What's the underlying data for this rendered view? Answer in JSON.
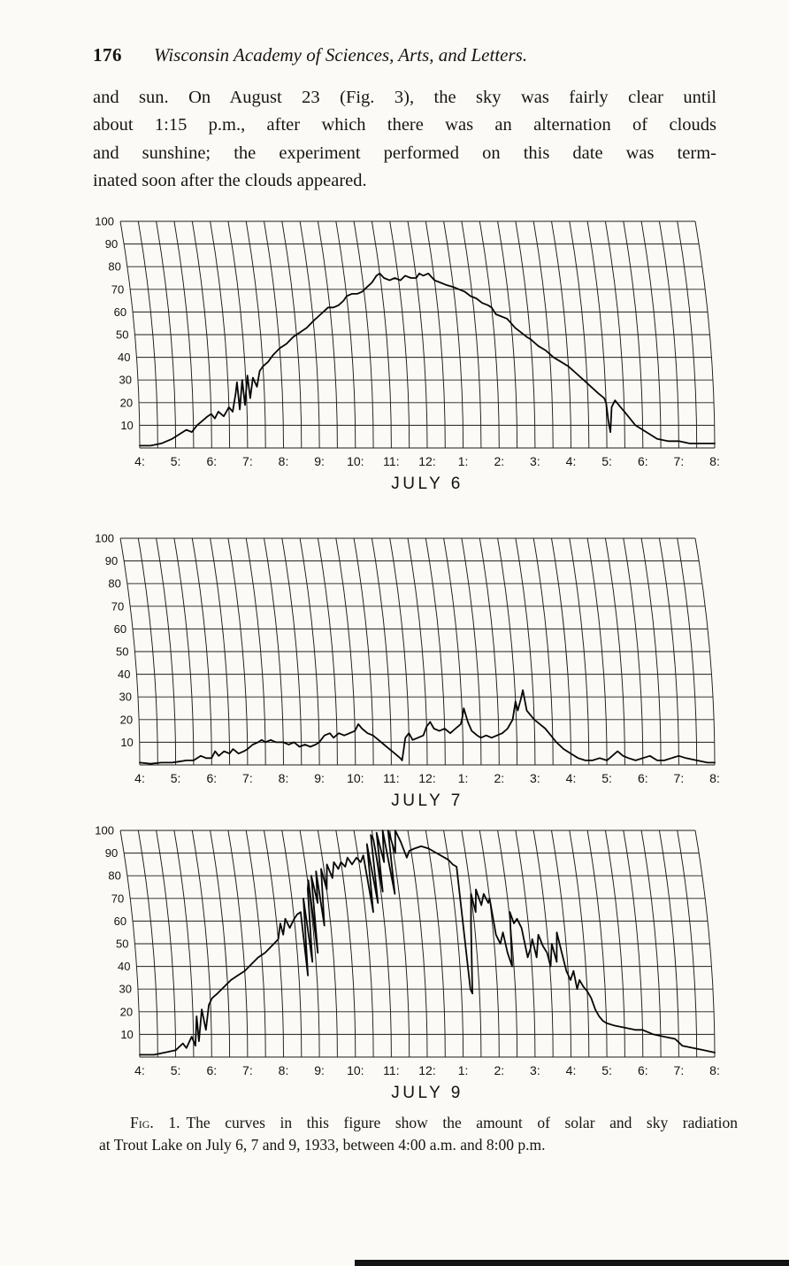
{
  "page": {
    "page_number": "176",
    "running_head": "Wisconsin Academy of Sciences, Arts, and Letters.",
    "body_lines": [
      "and sun.  On August 23 (Fig. 3), the sky was fairly clear until",
      "about 1:15 p.m., after which there was an alternation of clouds",
      "and sunshine; the experiment performed on this date was term-",
      "inated soon after the clouds appeared."
    ],
    "caption_label": "Fig. 1.",
    "caption_line1": "The curves in this figure show the amount of solar and sky radiation",
    "caption_line2": "at Trout Lake on July 6, 7 and 9, 1933, between 4:00 a.m. and 8:00 p.m."
  },
  "chart_data": [
    {
      "type": "line",
      "title": "JULY 6",
      "series_name": "solar and sky radiation",
      "x_tick_labels": [
        "4:",
        "5:",
        "6:",
        "7:",
        "8:",
        "9:",
        "10:",
        "11:",
        "12:",
        "1:",
        "2:",
        "3:",
        "4:",
        "5:",
        "6:",
        "7:",
        "8:"
      ],
      "x_range_hours": [
        4,
        20
      ],
      "ylim": [
        0,
        100
      ],
      "y_ticks": [
        10,
        20,
        30,
        40,
        50,
        60,
        70,
        80,
        90,
        100
      ],
      "grid": "recorder chart with 30-minute curved time arcs",
      "points": [
        [
          4.0,
          1
        ],
        [
          4.3,
          1
        ],
        [
          4.6,
          2
        ],
        [
          4.9,
          4
        ],
        [
          5.1,
          6
        ],
        [
          5.3,
          8
        ],
        [
          5.45,
          7
        ],
        [
          5.6,
          10
        ],
        [
          5.75,
          12
        ],
        [
          5.9,
          14
        ],
        [
          6.0,
          15
        ],
        [
          6.1,
          13
        ],
        [
          6.2,
          16
        ],
        [
          6.35,
          14
        ],
        [
          6.5,
          18
        ],
        [
          6.6,
          16
        ],
        [
          6.7,
          24
        ],
        [
          6.75,
          29
        ],
        [
          6.8,
          17
        ],
        [
          6.9,
          30
        ],
        [
          6.95,
          19
        ],
        [
          7.05,
          32
        ],
        [
          7.1,
          22
        ],
        [
          7.2,
          31
        ],
        [
          7.3,
          27
        ],
        [
          7.4,
          34
        ],
        [
          7.5,
          36
        ],
        [
          7.65,
          38
        ],
        [
          7.8,
          41
        ],
        [
          8.0,
          44
        ],
        [
          8.2,
          46
        ],
        [
          8.4,
          49
        ],
        [
          8.6,
          51
        ],
        [
          8.8,
          53
        ],
        [
          9.0,
          56
        ],
        [
          9.15,
          58
        ],
        [
          9.3,
          60
        ],
        [
          9.45,
          62
        ],
        [
          9.6,
          62
        ],
        [
          9.75,
          63
        ],
        [
          9.9,
          65
        ],
        [
          10.0,
          67
        ],
        [
          10.15,
          68
        ],
        [
          10.3,
          68
        ],
        [
          10.45,
          69
        ],
        [
          10.6,
          71
        ],
        [
          10.75,
          73
        ],
        [
          10.9,
          76
        ],
        [
          11.0,
          77
        ],
        [
          11.1,
          75
        ],
        [
          11.25,
          74
        ],
        [
          11.4,
          75
        ],
        [
          11.55,
          74
        ],
        [
          11.7,
          76
        ],
        [
          11.85,
          75
        ],
        [
          12.0,
          75
        ],
        [
          12.1,
          77
        ],
        [
          12.2,
          76
        ],
        [
          12.35,
          77
        ],
        [
          12.5,
          74
        ],
        [
          12.65,
          73
        ],
        [
          12.8,
          72
        ],
        [
          13.0,
          71
        ],
        [
          13.15,
          70
        ],
        [
          13.3,
          69
        ],
        [
          13.45,
          67
        ],
        [
          13.6,
          66
        ],
        [
          13.75,
          64
        ],
        [
          13.9,
          63
        ],
        [
          14.0,
          62
        ],
        [
          14.1,
          59
        ],
        [
          14.25,
          58
        ],
        [
          14.4,
          57
        ],
        [
          14.5,
          55
        ],
        [
          14.6,
          53
        ],
        [
          14.75,
          51
        ],
        [
          14.9,
          49
        ],
        [
          15.0,
          48
        ],
        [
          15.2,
          45
        ],
        [
          15.4,
          43
        ],
        [
          15.6,
          40
        ],
        [
          15.8,
          38
        ],
        [
          16.0,
          36
        ],
        [
          16.2,
          33
        ],
        [
          16.4,
          30
        ],
        [
          16.6,
          27
        ],
        [
          16.8,
          24
        ],
        [
          16.95,
          22
        ],
        [
          17.0,
          20
        ],
        [
          17.05,
          12
        ],
        [
          17.1,
          7
        ],
        [
          17.15,
          18
        ],
        [
          17.25,
          21
        ],
        [
          17.35,
          19
        ],
        [
          17.5,
          16
        ],
        [
          17.65,
          13
        ],
        [
          17.8,
          10
        ],
        [
          18.0,
          8
        ],
        [
          18.2,
          6
        ],
        [
          18.4,
          4
        ],
        [
          18.7,
          3
        ],
        [
          19.0,
          3
        ],
        [
          19.3,
          2
        ],
        [
          19.6,
          2
        ],
        [
          20.0,
          2
        ]
      ]
    },
    {
      "type": "line",
      "title": "JULY 7",
      "series_name": "solar and sky radiation",
      "x_tick_labels": [
        "4:",
        "5:",
        "6:",
        "7:",
        "8:",
        "9:",
        "10:",
        "11:",
        "12:",
        "1:",
        "2:",
        "3:",
        "4:",
        "5:",
        "6:",
        "7:",
        "8:"
      ],
      "x_range_hours": [
        4,
        20
      ],
      "ylim": [
        0,
        100
      ],
      "y_ticks": [
        10,
        20,
        30,
        40,
        50,
        60,
        70,
        80,
        90,
        100
      ],
      "grid": "recorder chart with 30-minute curved time arcs",
      "points": [
        [
          4.0,
          1
        ],
        [
          4.3,
          0.5
        ],
        [
          4.6,
          1
        ],
        [
          4.9,
          1
        ],
        [
          5.1,
          1.5
        ],
        [
          5.3,
          2
        ],
        [
          5.5,
          2
        ],
        [
          5.7,
          4
        ],
        [
          5.85,
          3
        ],
        [
          6.0,
          3
        ],
        [
          6.1,
          6
        ],
        [
          6.2,
          4
        ],
        [
          6.35,
          6
        ],
        [
          6.5,
          5
        ],
        [
          6.6,
          7
        ],
        [
          6.75,
          5
        ],
        [
          6.9,
          6
        ],
        [
          7.0,
          7
        ],
        [
          7.15,
          9
        ],
        [
          7.3,
          10
        ],
        [
          7.4,
          11
        ],
        [
          7.5,
          10
        ],
        [
          7.65,
          11
        ],
        [
          7.8,
          10
        ],
        [
          8.0,
          10
        ],
        [
          8.15,
          9
        ],
        [
          8.3,
          10
        ],
        [
          8.45,
          8
        ],
        [
          8.6,
          9
        ],
        [
          8.75,
          8
        ],
        [
          8.9,
          9
        ],
        [
          9.0,
          10
        ],
        [
          9.15,
          13
        ],
        [
          9.3,
          14
        ],
        [
          9.4,
          12
        ],
        [
          9.55,
          14
        ],
        [
          9.7,
          13
        ],
        [
          9.85,
          14
        ],
        [
          10.0,
          15
        ],
        [
          10.1,
          18
        ],
        [
          10.2,
          16
        ],
        [
          10.35,
          14
        ],
        [
          10.5,
          13
        ],
        [
          10.65,
          11
        ],
        [
          10.8,
          9
        ],
        [
          10.95,
          7
        ],
        [
          11.1,
          5
        ],
        [
          11.25,
          3
        ],
        [
          11.3,
          2
        ],
        [
          11.4,
          12
        ],
        [
          11.5,
          14
        ],
        [
          11.6,
          11
        ],
        [
          11.75,
          12
        ],
        [
          11.9,
          13
        ],
        [
          12.0,
          17
        ],
        [
          12.1,
          19
        ],
        [
          12.2,
          16
        ],
        [
          12.35,
          15
        ],
        [
          12.5,
          16
        ],
        [
          12.65,
          14
        ],
        [
          12.8,
          16
        ],
        [
          12.95,
          18
        ],
        [
          13.0,
          21
        ],
        [
          13.05,
          25
        ],
        [
          13.15,
          19
        ],
        [
          13.25,
          15
        ],
        [
          13.4,
          13
        ],
        [
          13.5,
          12
        ],
        [
          13.65,
          13
        ],
        [
          13.8,
          12
        ],
        [
          13.95,
          13
        ],
        [
          14.1,
          14
        ],
        [
          14.25,
          16
        ],
        [
          14.4,
          20
        ],
        [
          14.5,
          28
        ],
        [
          14.55,
          24
        ],
        [
          14.65,
          29
        ],
        [
          14.72,
          33
        ],
        [
          14.8,
          24
        ],
        [
          14.9,
          22
        ],
        [
          15.0,
          20
        ],
        [
          15.15,
          18
        ],
        [
          15.3,
          16
        ],
        [
          15.45,
          13
        ],
        [
          15.6,
          10
        ],
        [
          15.8,
          7
        ],
        [
          16.0,
          5
        ],
        [
          16.2,
          3
        ],
        [
          16.4,
          2
        ],
        [
          16.6,
          2
        ],
        [
          16.8,
          3
        ],
        [
          17.0,
          2
        ],
        [
          17.15,
          4
        ],
        [
          17.3,
          6
        ],
        [
          17.45,
          4
        ],
        [
          17.6,
          3
        ],
        [
          17.8,
          2
        ],
        [
          18.0,
          3
        ],
        [
          18.2,
          4
        ],
        [
          18.4,
          2
        ],
        [
          18.6,
          2
        ],
        [
          18.8,
          3
        ],
        [
          19.0,
          4
        ],
        [
          19.2,
          3
        ],
        [
          19.5,
          2
        ],
        [
          19.8,
          1
        ],
        [
          20.0,
          1
        ]
      ]
    },
    {
      "type": "line",
      "title": "JULY 9",
      "series_name": "solar and sky radiation",
      "x_tick_labels": [
        "4:",
        "5:",
        "6:",
        "7:",
        "8:",
        "9:",
        "10:",
        "11:",
        "12:",
        "1:",
        "2:",
        "3:",
        "4:",
        "5:",
        "6:",
        "7:",
        "8:"
      ],
      "x_range_hours": [
        4,
        20
      ],
      "ylim": [
        0,
        100
      ],
      "y_ticks": [
        10,
        20,
        30,
        40,
        50,
        60,
        70,
        80,
        90,
        100
      ],
      "grid": "recorder chart with 30-minute curved time arcs",
      "points": [
        [
          4.0,
          1
        ],
        [
          4.4,
          1
        ],
        [
          4.7,
          2
        ],
        [
          5.0,
          3
        ],
        [
          5.2,
          6
        ],
        [
          5.3,
          4
        ],
        [
          5.45,
          9
        ],
        [
          5.55,
          5
        ],
        [
          5.6,
          18
        ],
        [
          5.65,
          7
        ],
        [
          5.75,
          21
        ],
        [
          5.85,
          12
        ],
        [
          5.95,
          23
        ],
        [
          6.05,
          26
        ],
        [
          6.2,
          28
        ],
        [
          6.4,
          31
        ],
        [
          6.6,
          34
        ],
        [
          6.8,
          36
        ],
        [
          7.0,
          38
        ],
        [
          7.2,
          41
        ],
        [
          7.4,
          44
        ],
        [
          7.6,
          46
        ],
        [
          7.8,
          49
        ],
        [
          8.0,
          52
        ],
        [
          8.1,
          59
        ],
        [
          8.15,
          54
        ],
        [
          8.25,
          61
        ],
        [
          8.35,
          57
        ],
        [
          8.5,
          61
        ],
        [
          8.6,
          63
        ],
        [
          8.7,
          64
        ],
        [
          8.75,
          36
        ],
        [
          8.82,
          70
        ],
        [
          8.9,
          42
        ],
        [
          8.97,
          74
        ],
        [
          9.02,
          78
        ],
        [
          9.07,
          46
        ],
        [
          9.12,
          80
        ],
        [
          9.2,
          68
        ],
        [
          9.27,
          82
        ],
        [
          9.32,
          58
        ],
        [
          9.42,
          83
        ],
        [
          9.5,
          74
        ],
        [
          9.6,
          85
        ],
        [
          9.7,
          79
        ],
        [
          9.8,
          86
        ],
        [
          9.9,
          83
        ],
        [
          10.0,
          86
        ],
        [
          10.1,
          84
        ],
        [
          10.2,
          88
        ],
        [
          10.3,
          85
        ],
        [
          10.45,
          88
        ],
        [
          10.55,
          86
        ],
        [
          10.65,
          89
        ],
        [
          10.72,
          64
        ],
        [
          10.8,
          94
        ],
        [
          10.88,
          68
        ],
        [
          10.95,
          98
        ],
        [
          11.0,
          96
        ],
        [
          11.05,
          73
        ],
        [
          11.12,
          99
        ],
        [
          11.2,
          86
        ],
        [
          11.3,
          100
        ],
        [
          11.38,
          72
        ],
        [
          11.45,
          100
        ],
        [
          11.55,
          90
        ],
        [
          11.65,
          100
        ],
        [
          11.75,
          95
        ],
        [
          11.85,
          88
        ],
        [
          11.95,
          91
        ],
        [
          12.1,
          92
        ],
        [
          12.3,
          93
        ],
        [
          12.5,
          92
        ],
        [
          12.7,
          90
        ],
        [
          12.9,
          88
        ],
        [
          13.0,
          87
        ],
        [
          13.1,
          85
        ],
        [
          13.2,
          84
        ],
        [
          13.25,
          30
        ],
        [
          13.3,
          28
        ],
        [
          13.4,
          58
        ],
        [
          13.5,
          72
        ],
        [
          13.57,
          64
        ],
        [
          13.65,
          74
        ],
        [
          13.75,
          67
        ],
        [
          13.85,
          72
        ],
        [
          13.95,
          68
        ],
        [
          14.0,
          70
        ],
        [
          14.07,
          54
        ],
        [
          14.17,
          50
        ],
        [
          14.27,
          55
        ],
        [
          14.35,
          46
        ],
        [
          14.45,
          40
        ],
        [
          14.52,
          64
        ],
        [
          14.6,
          59
        ],
        [
          14.7,
          61
        ],
        [
          14.8,
          57
        ],
        [
          14.9,
          44
        ],
        [
          15.0,
          48
        ],
        [
          15.07,
          52
        ],
        [
          15.15,
          44
        ],
        [
          15.25,
          54
        ],
        [
          15.35,
          49
        ],
        [
          15.45,
          46
        ],
        [
          15.52,
          40
        ],
        [
          15.6,
          50
        ],
        [
          15.7,
          42
        ],
        [
          15.77,
          55
        ],
        [
          15.85,
          47
        ],
        [
          15.95,
          38
        ],
        [
          16.05,
          34
        ],
        [
          16.15,
          38
        ],
        [
          16.22,
          30
        ],
        [
          16.3,
          34
        ],
        [
          16.4,
          31
        ],
        [
          16.5,
          29
        ],
        [
          16.6,
          26
        ],
        [
          16.7,
          21
        ],
        [
          16.8,
          18
        ],
        [
          16.9,
          16
        ],
        [
          17.0,
          15
        ],
        [
          17.2,
          14
        ],
        [
          17.5,
          13
        ],
        [
          17.8,
          12
        ],
        [
          18.0,
          12
        ],
        [
          18.3,
          10
        ],
        [
          18.6,
          9
        ],
        [
          18.9,
          8
        ],
        [
          19.1,
          5
        ],
        [
          19.4,
          4
        ],
        [
          19.7,
          3
        ],
        [
          20.0,
          2
        ]
      ]
    }
  ]
}
